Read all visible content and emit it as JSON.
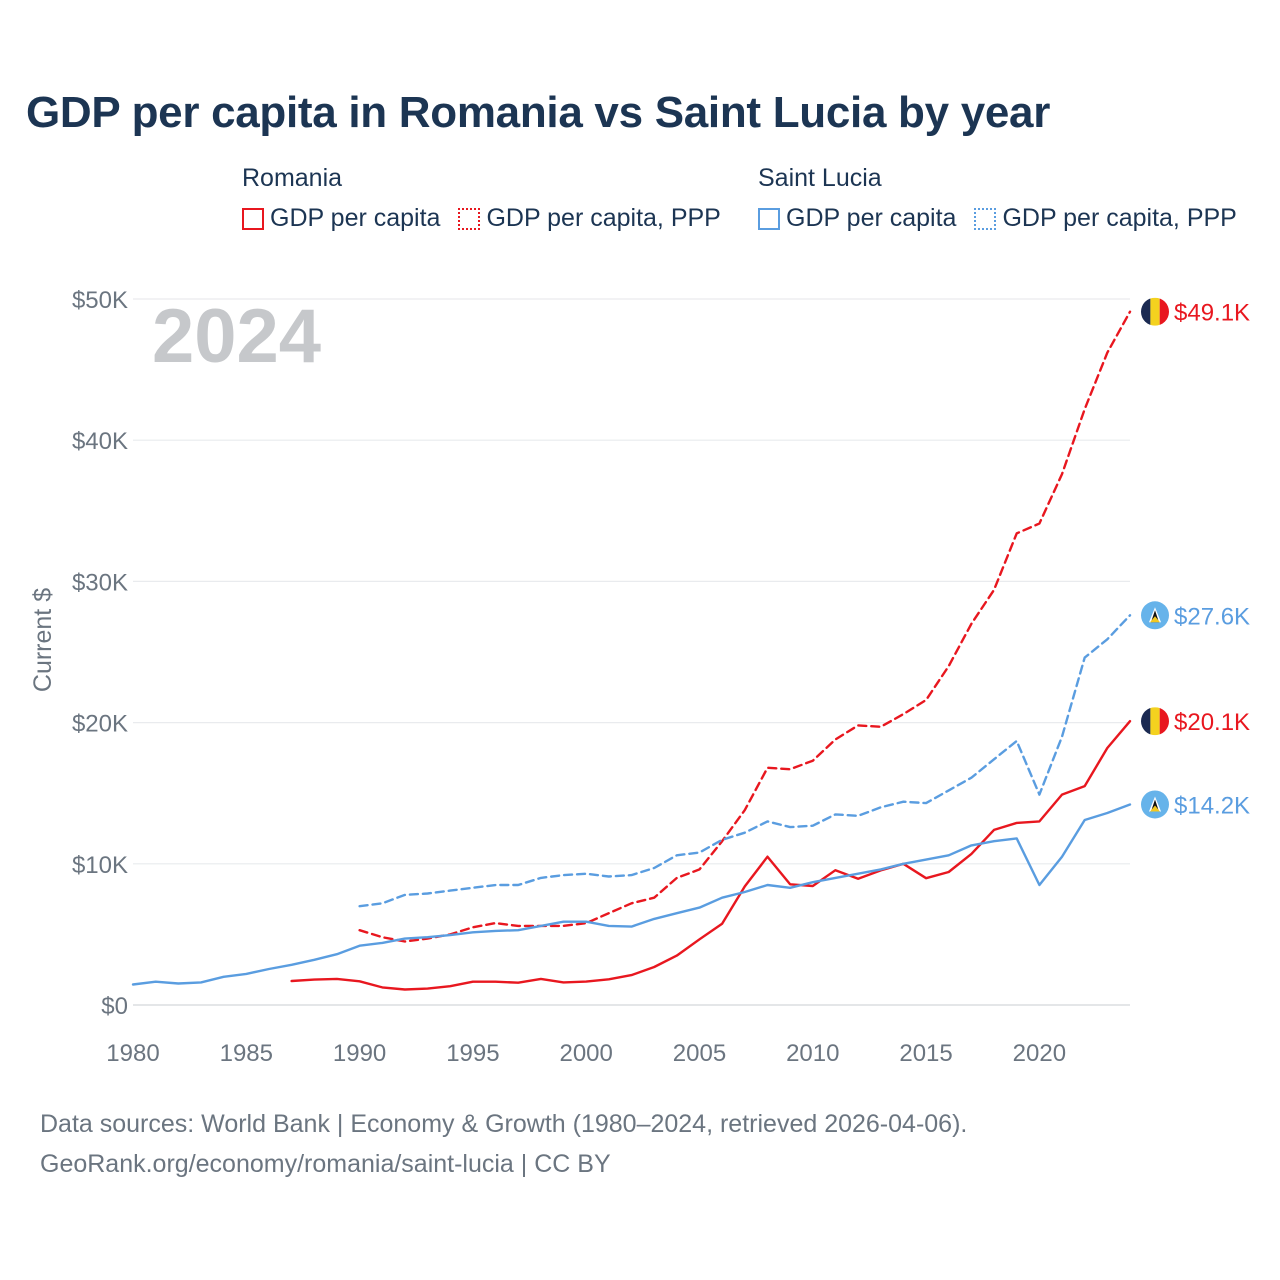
{
  "title": "GDP per capita in Romania vs Saint Lucia by year",
  "legend": {
    "groups": [
      {
        "country": "Romania",
        "color": "#e8171f",
        "items": [
          {
            "label": "GDP per capita",
            "style": "solid"
          },
          {
            "label": "GDP per capita, PPP",
            "style": "dotted"
          }
        ]
      },
      {
        "country": "Saint Lucia",
        "color": "#5a9de0",
        "items": [
          {
            "label": "GDP per capita",
            "style": "solid"
          },
          {
            "label": "GDP per capita, PPP",
            "style": "dotted"
          }
        ]
      }
    ]
  },
  "chart_data": {
    "type": "line",
    "title": "GDP per capita in Romania vs Saint Lucia by year",
    "ylabel": "Current $",
    "xlabel": "",
    "xlim": [
      1980,
      2024
    ],
    "ylim": [
      0,
      50000
    ],
    "x_ticks": [
      1980,
      1985,
      1990,
      1995,
      2000,
      2005,
      2010,
      2015,
      2020
    ],
    "y_ticks": [
      {
        "value": 0,
        "label": "$0"
      },
      {
        "value": 10000,
        "label": "$10K"
      },
      {
        "value": 20000,
        "label": "$20K"
      },
      {
        "value": 30000,
        "label": "$30K"
      },
      {
        "value": 40000,
        "label": "$40K"
      },
      {
        "value": 50000,
        "label": "$50K"
      }
    ],
    "year_watermark": "2024",
    "grid": true,
    "series": [
      {
        "name": "Romania GDP per capita",
        "country": "Romania",
        "color": "#e8171f",
        "dash": "solid",
        "end_label": "$20.1K",
        "end_icon": "romania-flag",
        "x": [
          1987,
          1988,
          1989,
          1990,
          1991,
          1992,
          1993,
          1994,
          1995,
          1996,
          1997,
          1998,
          1999,
          2000,
          2001,
          2002,
          2003,
          2004,
          2005,
          2006,
          2007,
          2008,
          2009,
          2010,
          2011,
          2012,
          2013,
          2014,
          2015,
          2016,
          2017,
          2018,
          2019,
          2020,
          2021,
          2022,
          2023,
          2024
        ],
        "values": [
          1700,
          1800,
          1850,
          1680,
          1250,
          1100,
          1160,
          1330,
          1650,
          1650,
          1580,
          1850,
          1600,
          1660,
          1820,
          2120,
          2690,
          3500,
          4650,
          5760,
          8400,
          10500,
          8550,
          8430,
          9550,
          8940,
          9530,
          10000,
          8980,
          9420,
          10700,
          12400,
          12900,
          13000,
          14900,
          15500,
          18200,
          20100
        ]
      },
      {
        "name": "Romania GDP per capita, PPP",
        "country": "Romania",
        "color": "#e8171f",
        "dash": "dashed",
        "end_label": "$49.1K",
        "end_icon": "romania-flag",
        "x": [
          1990,
          1991,
          1992,
          1993,
          1994,
          1995,
          1996,
          1997,
          1998,
          1999,
          2000,
          2001,
          2002,
          2003,
          2004,
          2005,
          2006,
          2007,
          2008,
          2009,
          2010,
          2011,
          2012,
          2013,
          2014,
          2015,
          2016,
          2017,
          2018,
          2019,
          2020,
          2021,
          2022,
          2023,
          2024
        ],
        "values": [
          5300,
          4800,
          4500,
          4700,
          5000,
          5500,
          5800,
          5600,
          5600,
          5600,
          5800,
          6500,
          7200,
          7600,
          9000,
          9600,
          11600,
          13800,
          16800,
          16700,
          17300,
          18800,
          19800,
          19700,
          20600,
          21600,
          24000,
          27000,
          29400,
          33400,
          34100,
          37600,
          42200,
          46200,
          49100
        ]
      },
      {
        "name": "Saint Lucia GDP per capita",
        "country": "Saint Lucia",
        "color": "#5a9de0",
        "dash": "solid",
        "end_label": "$14.2K",
        "end_icon": "saint-lucia-flag",
        "x": [
          1980,
          1981,
          1982,
          1983,
          1984,
          1985,
          1986,
          1987,
          1988,
          1989,
          1990,
          1991,
          1992,
          1993,
          1994,
          1995,
          1996,
          1997,
          1998,
          1999,
          2000,
          2001,
          2002,
          2003,
          2004,
          2005,
          2006,
          2007,
          2008,
          2009,
          2010,
          2011,
          2012,
          2013,
          2014,
          2015,
          2016,
          2017,
          2018,
          2019,
          2020,
          2021,
          2022,
          2023,
          2024
        ],
        "values": [
          1450,
          1650,
          1520,
          1600,
          2000,
          2200,
          2550,
          2850,
          3200,
          3600,
          4200,
          4400,
          4700,
          4800,
          4950,
          5150,
          5250,
          5300,
          5600,
          5900,
          5900,
          5600,
          5550,
          6100,
          6500,
          6900,
          7600,
          8000,
          8500,
          8300,
          8700,
          9000,
          9300,
          9600,
          10000,
          10300,
          10600,
          11300,
          11600,
          11800,
          8500,
          10500,
          13100,
          13600,
          14200
        ]
      },
      {
        "name": "Saint Lucia GDP per capita, PPP",
        "country": "Saint Lucia",
        "color": "#5a9de0",
        "dash": "dashed",
        "end_label": "$27.6K",
        "end_icon": "saint-lucia-flag",
        "x": [
          1990,
          1991,
          1992,
          1993,
          1994,
          1995,
          1996,
          1997,
          1998,
          1999,
          2000,
          2001,
          2002,
          2003,
          2004,
          2005,
          2006,
          2007,
          2008,
          2009,
          2010,
          2011,
          2012,
          2013,
          2014,
          2015,
          2016,
          2017,
          2018,
          2019,
          2020,
          2021,
          2022,
          2023,
          2024
        ],
        "values": [
          7000,
          7200,
          7800,
          7900,
          8100,
          8300,
          8500,
          8500,
          9000,
          9200,
          9300,
          9100,
          9200,
          9700,
          10600,
          10800,
          11700,
          12200,
          13000,
          12600,
          12700,
          13500,
          13400,
          14000,
          14400,
          14300,
          15200,
          16100,
          17400,
          18700,
          14900,
          19000,
          24600,
          25900,
          27600
        ]
      }
    ]
  },
  "footer": {
    "line1": "Data sources: World Bank | Economy & Growth (1980–2024, retrieved 2026-04-06).",
    "line2": "GeoRank.org/economy/romania/saint-lucia | CC BY"
  }
}
